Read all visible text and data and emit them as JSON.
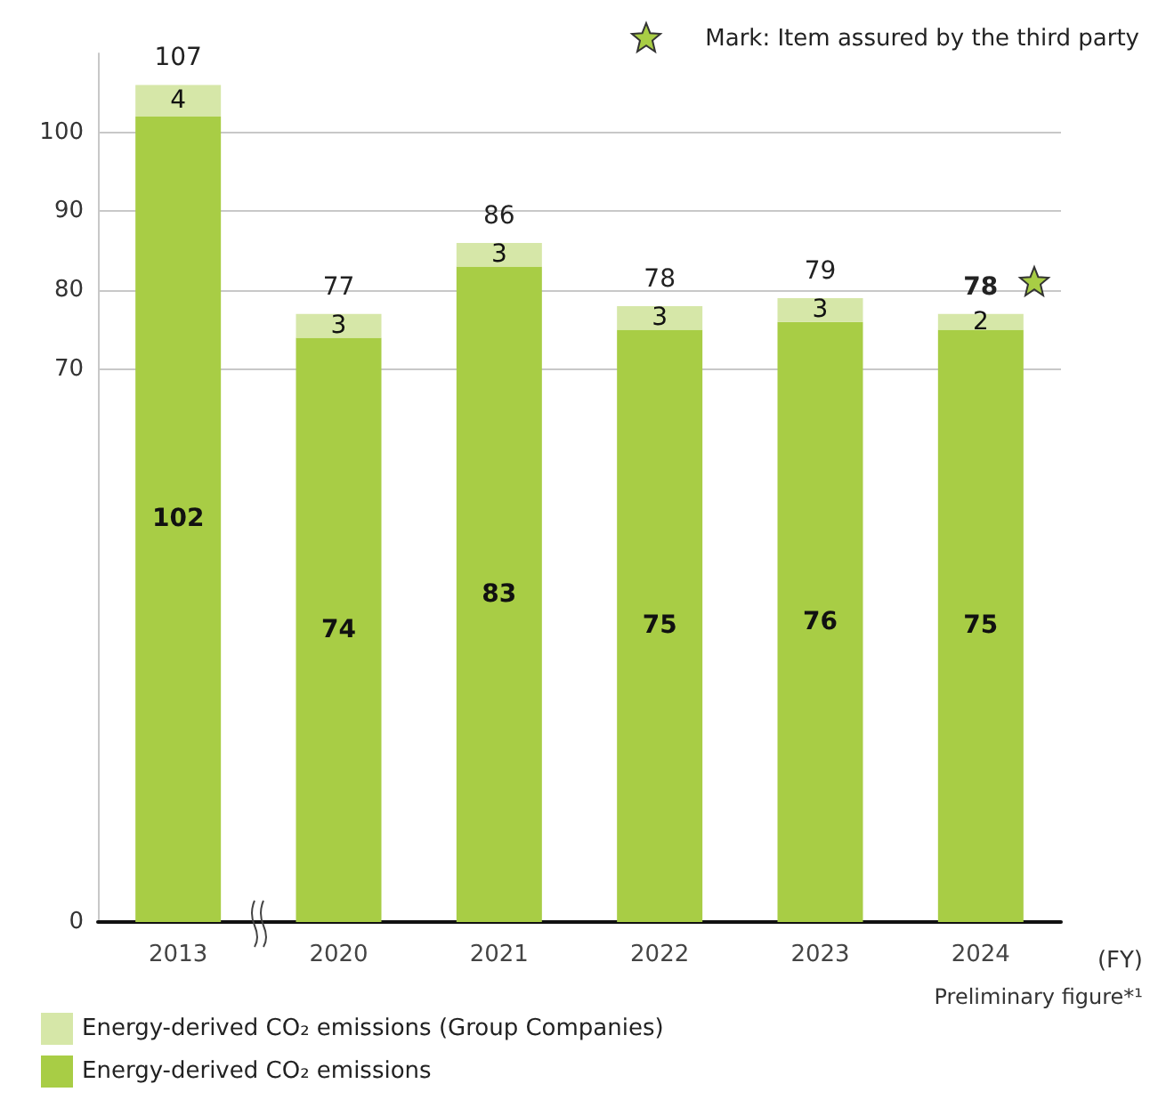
{
  "chart_data": {
    "type": "bar",
    "stacked": true,
    "categories": [
      "2013",
      "2020",
      "2021",
      "2022",
      "2023",
      "2024"
    ],
    "series": [
      {
        "name": "Energy-derived CO₂ emissions",
        "color": "#a8cd45",
        "values": [
          102,
          74,
          83,
          75,
          76,
          75
        ]
      },
      {
        "name": "Energy-derived CO₂ emissions (Group Companies)",
        "color": "#d6e7a8",
        "values": [
          4,
          3,
          3,
          3,
          3,
          2
        ]
      }
    ],
    "totals": [
      "107",
      "77",
      "86",
      "78",
      "79",
      "78"
    ],
    "data_labels": true,
    "ylim": [
      0,
      110
    ],
    "yticks": [
      0,
      70,
      80,
      90,
      100
    ],
    "grid": "y",
    "legend": "bottom left",
    "annotations": [
      "Mark: Item assured by the third party",
      "(FY)",
      "Preliminary figure*¹"
    ]
  }
}
